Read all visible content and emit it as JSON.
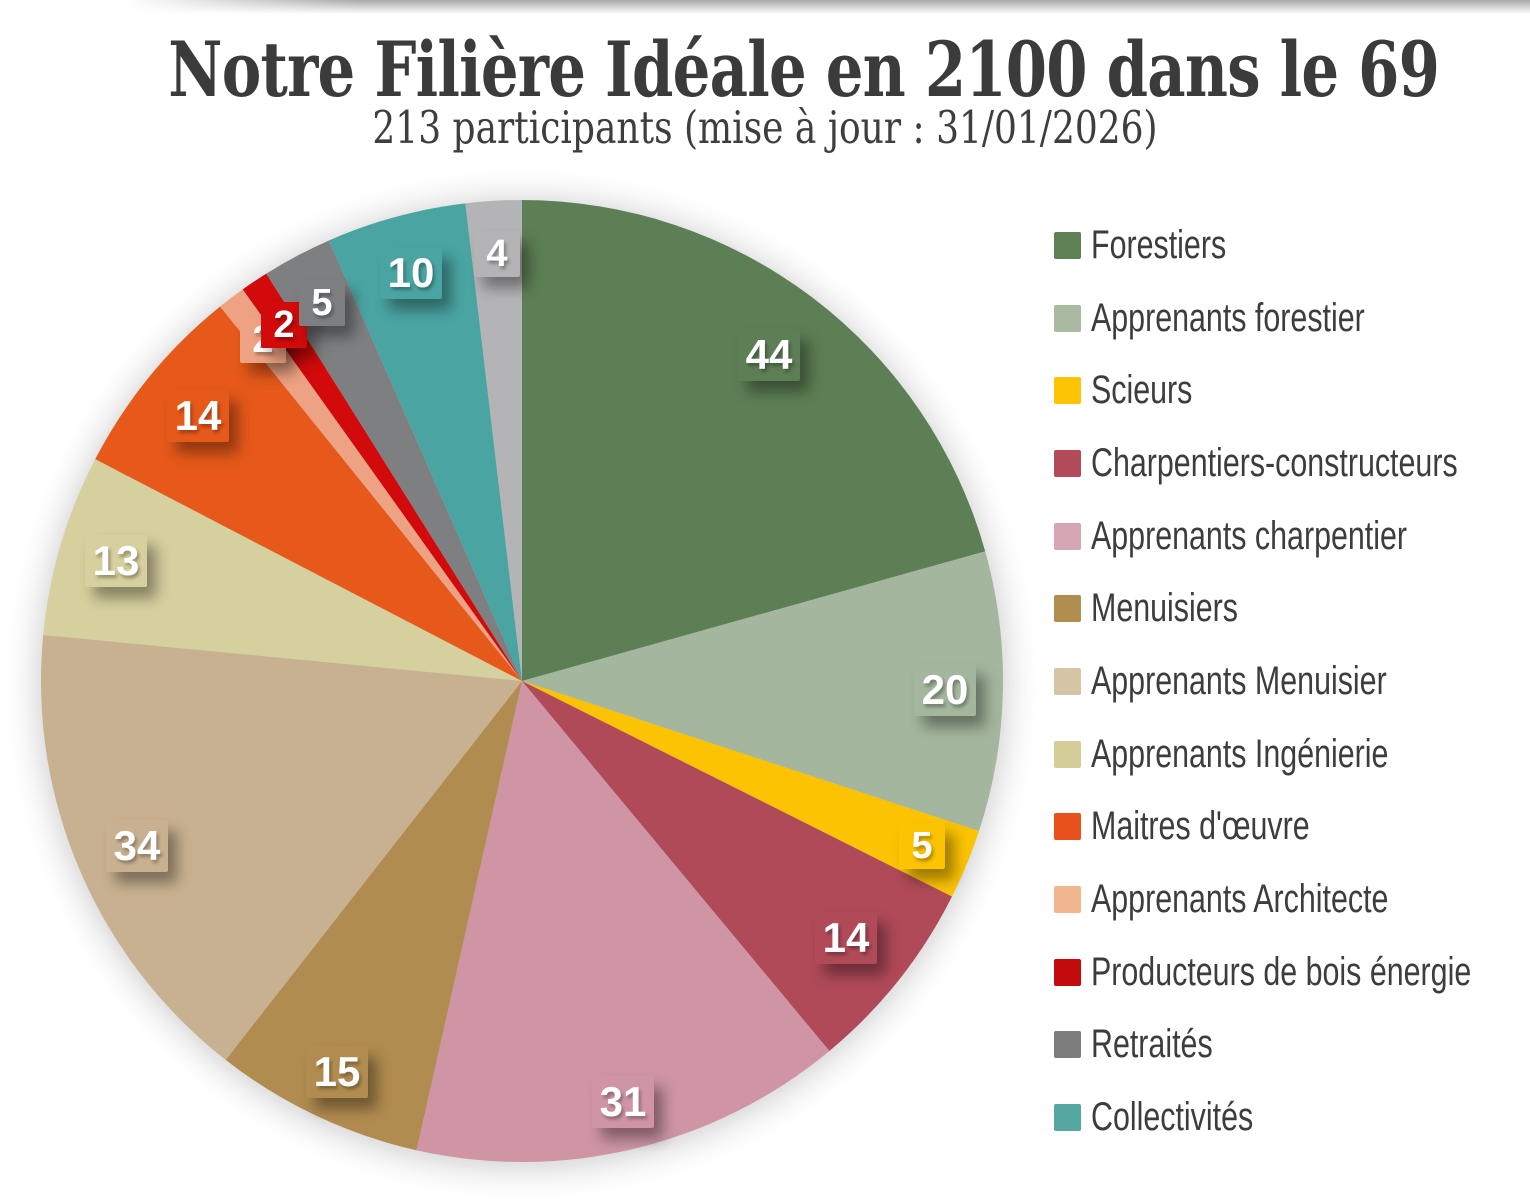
{
  "chart_data": {
    "type": "pie",
    "title": "Notre Filière Idéale en 2100 dans le 69",
    "subtitle": "213 participants (mise à jour : 31/01/2026)",
    "total_participants": 213,
    "legend_position": "right",
    "start_angle_deg_from_top": 0,
    "direction": "clockwise",
    "value_labels_shown_on_slices": true,
    "slices": [
      {
        "label": "Forestiers",
        "value": 44,
        "color": "#5d7f55",
        "legend_color": "#5f8156",
        "in_legend": true
      },
      {
        "label": "Apprenants forestier",
        "value": 20,
        "color": "#a4b69d",
        "legend_color": "#a9b9a2",
        "in_legend": true
      },
      {
        "label": "Scieurs",
        "value": 5,
        "color": "#fcc303",
        "legend_color": "#fdc405",
        "in_legend": true
      },
      {
        "label": "Charpentiers-constructeurs",
        "value": 14,
        "color": "#b04a59",
        "legend_color": "#b24b5a",
        "in_legend": true
      },
      {
        "label": "Apprenants charpentier",
        "value": 31,
        "color": "#cf95a5",
        "legend_color": "#d6a5b3",
        "in_legend": true
      },
      {
        "label": "Menuisiers",
        "value": 15,
        "color": "#b18c50",
        "legend_color": "#b28d50",
        "in_legend": true
      },
      {
        "label": "Apprenants Menuisier",
        "value": 34,
        "color": "#c8b190",
        "legend_color": "#d6c5a4",
        "in_legend": true
      },
      {
        "label": "Apprenants Ingénierie",
        "value": 13,
        "color": "#d6cf9e",
        "legend_color": "#d4cd98",
        "in_legend": true
      },
      {
        "label": "Maitres d'œuvre",
        "value": 14,
        "color": "#e6591a",
        "legend_color": "#e8511b",
        "in_legend": true
      },
      {
        "label": "Apprenants Architecte",
        "value": 2,
        "color": "#eda383",
        "legend_color": "#f2b691",
        "in_legend": true
      },
      {
        "label": "Producteurs de bois énergie",
        "value": 2,
        "color": "#d20a0b",
        "legend_color": "#c30a0c",
        "in_legend": true
      },
      {
        "label": "Retraités",
        "value": 5,
        "color": "#7e7f81",
        "legend_color": "#7d7d7d",
        "in_legend": true
      },
      {
        "label": "Collectivités",
        "value": 10,
        "color": "#4aa5a2",
        "legend_color": "#55a8a1",
        "in_legend": true
      },
      {
        "label": "",
        "value": 4,
        "color": "#b4b4b6",
        "in_legend": false
      }
    ]
  }
}
